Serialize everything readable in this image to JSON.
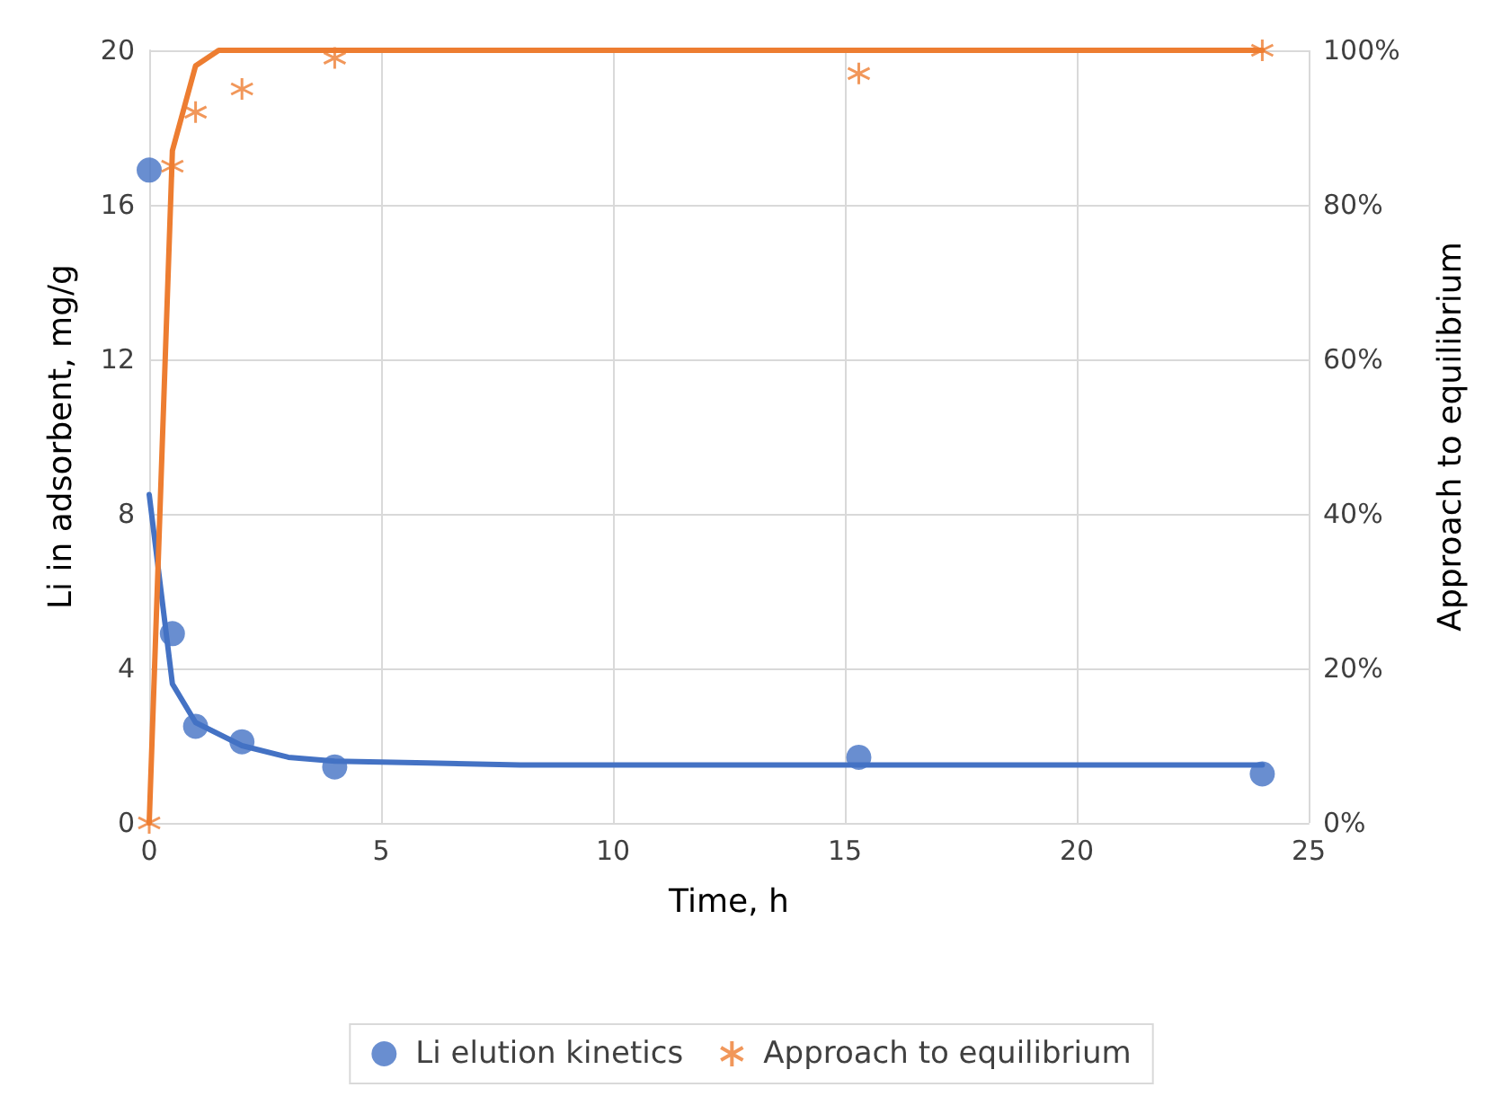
{
  "chart_data": {
    "type": "scatter",
    "xlabel": "Time, h",
    "ylabel": "Li in adsorbent, mg/g",
    "y2label": "Approach to equilibrium",
    "xlim": [
      0,
      25
    ],
    "xticks": [
      0,
      5,
      10,
      15,
      20,
      25
    ],
    "ylim": [
      0,
      20
    ],
    "yticks": [
      0,
      4,
      8,
      12,
      16,
      20
    ],
    "y2lim": [
      0,
      100
    ],
    "y2ticks": [
      {
        "value": 0,
        "label": "0%"
      },
      {
        "value": 20,
        "label": "20%"
      },
      {
        "value": 40,
        "label": "40%"
      },
      {
        "value": 60,
        "label": "60%"
      },
      {
        "value": 80,
        "label": "80%"
      },
      {
        "value": 100,
        "label": "100%"
      }
    ],
    "grid": true,
    "legend": "bottom",
    "series": [
      {
        "name": "Li elution kinetics",
        "marker": "circle",
        "color": "#4472c4",
        "x": [
          0,
          0.5,
          1,
          2,
          4,
          15.3,
          24
        ],
        "values": [
          16.9,
          4.9,
          2.5,
          2.1,
          1.45,
          1.7,
          1.27
        ]
      },
      {
        "name": "Approach to equilibrium",
        "marker": "cross",
        "axis": "y2",
        "color": "#ed7d31",
        "x": [
          0,
          0.5,
          1,
          2,
          4,
          15.3,
          24
        ],
        "values": [
          0,
          85,
          92,
          95,
          99,
          97,
          100
        ]
      },
      {
        "type": "line",
        "marker": "none",
        "line_style": "solid",
        "color": "#4472c4",
        "x": [
          0,
          0.5,
          1,
          2,
          3,
          4,
          6,
          8,
          12,
          16,
          20,
          24
        ],
        "values": [
          8.5,
          3.6,
          2.6,
          2.0,
          1.7,
          1.6,
          1.55,
          1.5,
          1.5,
          1.5,
          1.5,
          1.5
        ]
      },
      {
        "type": "line",
        "marker": "none",
        "line_style": "solid",
        "axis": "y2",
        "color": "#ed7d31",
        "x": [
          0,
          0.5,
          1,
          1.5,
          4,
          8,
          16,
          24
        ],
        "values": [
          0,
          87,
          98,
          100,
          100,
          100,
          100,
          100
        ]
      }
    ]
  }
}
